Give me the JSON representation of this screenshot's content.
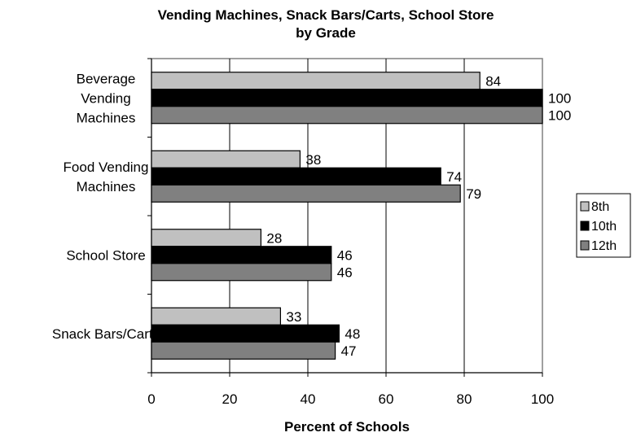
{
  "chart_data": {
    "type": "bar",
    "orientation": "horizontal",
    "title": [
      "Vending Machines, Snack Bars/Carts, School Store",
      "by Grade"
    ],
    "categories": [
      [
        "Beverage",
        "Vending",
        "Machines"
      ],
      [
        "Food Vending",
        "Machines"
      ],
      [
        "School Store"
      ],
      [
        "Snack Bars/Carts"
      ]
    ],
    "series": [
      {
        "name": "8th",
        "color": "#c0c0c0",
        "values": [
          84,
          38,
          28,
          33
        ]
      },
      {
        "name": "10th",
        "color": "#000000",
        "values": [
          100,
          74,
          46,
          48
        ]
      },
      {
        "name": "12th",
        "color": "#808080",
        "values": [
          100,
          79,
          46,
          47
        ]
      }
    ],
    "xlabel": "Percent of Schools",
    "xlim": [
      0,
      100
    ],
    "xticks": [
      0,
      20,
      40,
      60,
      80,
      100
    ],
    "grid": "vertical",
    "legend": "right"
  }
}
